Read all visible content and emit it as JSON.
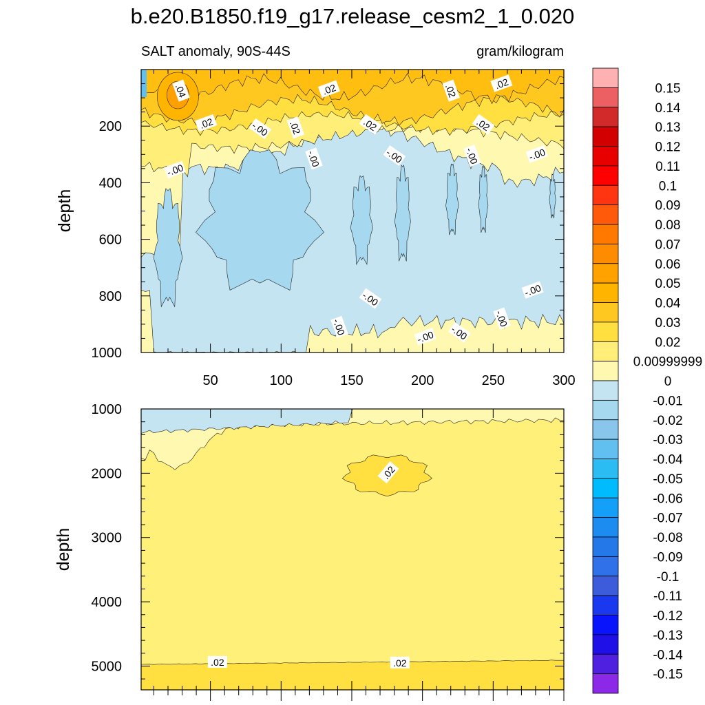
{
  "title": "b.e20.B1850.f19_g17.release_cesm2_1_0.020",
  "chart_data": {
    "type": "contour",
    "title": "b.e20.B1850.f19_g17.release_cesm2_1_0.020",
    "left_label": "SALT anomaly, 90S-44S",
    "right_label": "gram/kilogram",
    "panels": [
      {
        "name": "upper",
        "ylabel": "depth",
        "ylim": [
          0,
          1000
        ],
        "xlim": [
          1,
          300
        ],
        "yticks": [
          "200",
          "400",
          "600",
          "800",
          "1000"
        ],
        "xticks": [
          "50",
          "100",
          "150",
          "200",
          "250",
          "300"
        ],
        "contour_labels": [
          {
            "text": ".04",
            "x": 29,
            "y": 75
          },
          {
            "text": ".02",
            "x": 47,
            "y": 190
          },
          {
            "text": "-.00",
            "x": 85,
            "y": 210
          },
          {
            "text": ".02",
            "x": 110,
            "y": 205
          },
          {
            "text": ".02",
            "x": 134,
            "y": 70
          },
          {
            "text": ".02",
            "x": 163,
            "y": 195
          },
          {
            "text": "-.00",
            "x": 123,
            "y": 315
          },
          {
            "text": "-.00",
            "x": 25,
            "y": 355
          },
          {
            "text": "-.00",
            "x": 180,
            "y": 305
          },
          {
            "text": ".02",
            "x": 220,
            "y": 75
          },
          {
            "text": ".02",
            "x": 256,
            "y": 50
          },
          {
            "text": ".02",
            "x": 243,
            "y": 195
          },
          {
            "text": "-.00",
            "x": 235,
            "y": 305
          },
          {
            "text": "-.00",
            "x": 281,
            "y": 300
          },
          {
            "text": "-.00",
            "x": 163,
            "y": 810
          },
          {
            "text": "-.00",
            "x": 141,
            "y": 910
          },
          {
            "text": "-.00",
            "x": 202,
            "y": 945
          },
          {
            "text": "-.00",
            "x": 226,
            "y": 930
          },
          {
            "text": "-.00",
            "x": 256,
            "y": 880
          },
          {
            "text": "-.00",
            "x": 278,
            "y": 780
          }
        ]
      },
      {
        "name": "lower",
        "ylabel": "depth",
        "ylim": [
          1000,
          5370
        ],
        "xlim": [
          1,
          300
        ],
        "yticks": [
          "1000",
          "2000",
          "3000",
          "4000",
          "5000"
        ],
        "contour_labels": [
          {
            "text": ".02",
            "x": 176,
            "y": 1990
          },
          {
            "text": ".02",
            "x": 55,
            "y": 4940
          },
          {
            "text": ".02",
            "x": 184,
            "y": 4950
          }
        ]
      }
    ],
    "colorbar": {
      "labels": [
        "0.15",
        "0.14",
        "0.13",
        "0.12",
        "0.11",
        "0.1",
        "0.09",
        "0.08",
        "0.07",
        "0.06",
        "0.05",
        "0.04",
        "0.03",
        "0.02",
        "0.00999999",
        "0",
        "-0.01",
        "-0.02",
        "-0.03",
        "-0.04",
        "-0.05",
        "-0.06",
        "-0.07",
        "-0.08",
        "-0.09",
        "-0.1",
        "-0.11",
        "-0.12",
        "-0.13",
        "-0.14",
        "-0.15"
      ],
      "colors": [
        "#ffb0b0",
        "#ec6064",
        "#d22a2a",
        "#d20000",
        "#e80000",
        "#ff0000",
        "#ff3410",
        "#ff5a0a",
        "#ff7800",
        "#ff8c00",
        "#ffa200",
        "#ffb400",
        "#ffc820",
        "#ffe040",
        "#ffee78",
        "#fff8b0",
        "#c4e4f2",
        "#a6d8f0",
        "#88c6ec",
        "#62c0f0",
        "#2cbcf4",
        "#00bcff",
        "#14a0f8",
        "#1c8cf0",
        "#2478e8",
        "#3070e8",
        "#3c5cdc",
        "#1a38f0",
        "#0a14fc",
        "#2010e8",
        "#5020e0",
        "#8c28e8"
      ]
    },
    "colors": {
      "pos1": "#fff8b0",
      "pos2": "#ffee78",
      "pos3": "#ffe040",
      "pos4": "#ffc820",
      "pos5": "#ffb400",
      "neg1": "#c4e4f2",
      "neg2": "#a6d8f0",
      "neg3": "#88c6ec",
      "neg4": "#62c0f0",
      "neg5": "#2cbcf4"
    }
  }
}
